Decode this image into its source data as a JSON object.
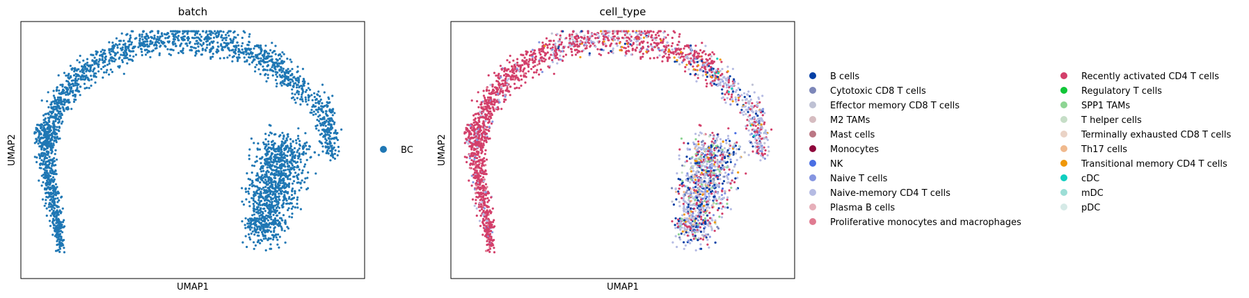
{
  "chart_data": [
    {
      "type": "scatter",
      "title": "batch",
      "xlabel": "UMAP1",
      "ylabel": "UMAP2",
      "ticks": "none",
      "grid": false,
      "legend_placement": "right",
      "legend": [
        {
          "label": "BC",
          "color": "#1f77b4"
        }
      ],
      "point_color": "#1f77b4",
      "description_of_points": "single batch; arch-shaped cloud of cells from left leg (bottom-left) over the top to a wide right lobe (bottom-right)"
    },
    {
      "type": "scatter",
      "title": "cell_type",
      "xlabel": "UMAP1",
      "ylabel": "UMAP2",
      "ticks": "none",
      "grid": false,
      "legend_placement": "right",
      "legend_columns": 2,
      "legend": [
        {
          "label": "B cells",
          "color": "#023fa5"
        },
        {
          "label": "Cytotoxic CD8 T cells",
          "color": "#7d87b9"
        },
        {
          "label": "Effector memory CD8 T cells",
          "color": "#bec1d4"
        },
        {
          "label": "M2 TAMs",
          "color": "#d6bcc0"
        },
        {
          "label": "Mast cells",
          "color": "#bb7784"
        },
        {
          "label": "Monocytes",
          "color": "#8e063b"
        },
        {
          "label": "NK",
          "color": "#4a6fe3"
        },
        {
          "label": "Naive T cells",
          "color": "#8595e1"
        },
        {
          "label": "Naive-memory CD4 T cells",
          "color": "#b5bbe3"
        },
        {
          "label": "Plasma B cells",
          "color": "#e6afb9"
        },
        {
          "label": "Proliferative monocytes and macrophages",
          "color": "#e07b91"
        },
        {
          "label": "Recently activated CD4 T cells",
          "color": "#d33f6a"
        },
        {
          "label": "Regulatory T cells",
          "color": "#11c638"
        },
        {
          "label": "SPP1 TAMs",
          "color": "#8dd593"
        },
        {
          "label": "T helper cells",
          "color": "#c6dec7"
        },
        {
          "label": "Terminally exhausted CD8 T cells",
          "color": "#ead3c6"
        },
        {
          "label": "Th17 cells",
          "color": "#f0b98d"
        },
        {
          "label": "Transitional memory CD4 T cells",
          "color": "#ef9708"
        },
        {
          "label": "cDC",
          "color": "#0fcfc0"
        },
        {
          "label": "mDC",
          "color": "#9cded6"
        },
        {
          "label": "pDC",
          "color": "#d5eae7"
        }
      ],
      "description_of_points": "same arch-shaped embedding; left leg and top dominated by Recently activated CD4 T cells, right lobe mixed with Naive-memory CD4 T cells, B cells and others"
    }
  ]
}
